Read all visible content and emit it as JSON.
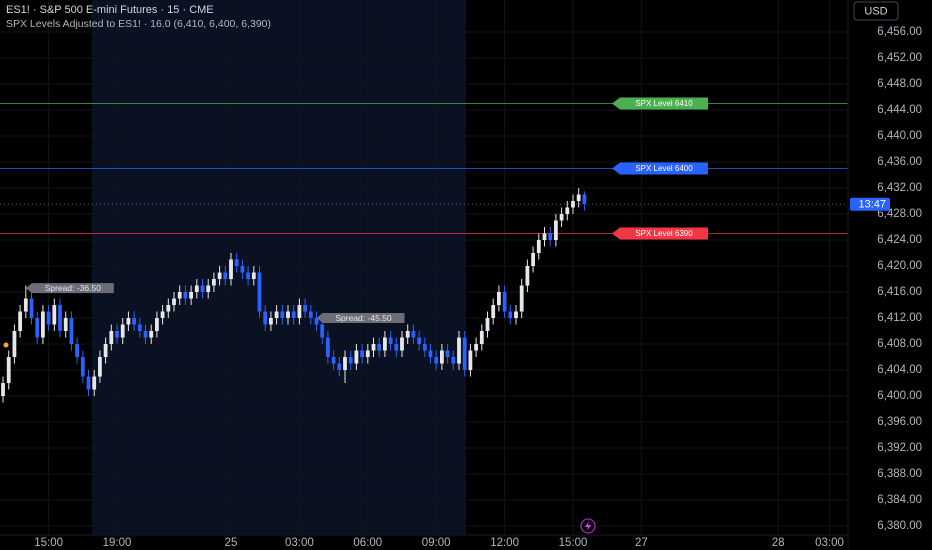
{
  "chart_data": {
    "type": "candlestick",
    "title": "ES1! · S&P 500 E-mini Futures · 15 · CME",
    "subtitle": "SPX Levels Adjusted to ES1! · 16.0 (6,410, 6,400, 6,390)",
    "currency": "USD",
    "up_color": "#e6e7eb",
    "down_color": "#2962ff",
    "grid": true,
    "xlim": [
      -0.53,
      148.25
    ],
    "xticks": [
      {
        "value": 8,
        "label": "15:00"
      },
      {
        "value": 20,
        "label": "19:00"
      },
      {
        "value": 40,
        "label": "25"
      },
      {
        "value": 52,
        "label": "03:00"
      },
      {
        "value": 64,
        "label": "06:00"
      },
      {
        "value": 76,
        "label": "09:00"
      },
      {
        "value": 88,
        "label": "12:00"
      },
      {
        "value": 100,
        "label": "15:00"
      },
      {
        "value": 112,
        "label": "27"
      },
      {
        "value": 136,
        "label": "28"
      },
      {
        "value": 145,
        "label": "03:00"
      }
    ],
    "ylim": [
      6378.62,
      6460.92
    ],
    "yticks": [
      {
        "value": 6380,
        "label": "6,380.00"
      },
      {
        "value": 6384,
        "label": "6,384.00"
      },
      {
        "value": 6388,
        "label": "6,388.00"
      },
      {
        "value": 6392,
        "label": "6,392.00"
      },
      {
        "value": 6396,
        "label": "6,396.00"
      },
      {
        "value": 6400,
        "label": "6,400.00"
      },
      {
        "value": 6404,
        "label": "6,404.00"
      },
      {
        "value": 6408,
        "label": "6,408.00"
      },
      {
        "value": 6412,
        "label": "6,412.00"
      },
      {
        "value": 6416,
        "label": "6,416.00"
      },
      {
        "value": 6420,
        "label": "6,420.00"
      },
      {
        "value": 6424,
        "label": "6,424.00"
      },
      {
        "value": 6428,
        "label": "6,428.00"
      },
      {
        "value": 6432,
        "label": "6,432.00"
      },
      {
        "value": 6436,
        "label": "6,436.00"
      },
      {
        "value": 6440,
        "label": "6,440.00"
      },
      {
        "value": 6444,
        "label": "6,444.00"
      },
      {
        "value": 6448,
        "label": "6,448.00"
      },
      {
        "value": 6452,
        "label": "6,452.00"
      },
      {
        "value": 6456,
        "label": "6,456.00"
      }
    ],
    "ohlc": [
      [
        6400,
        6403,
        6399,
        6402
      ],
      [
        6402,
        6407,
        6401,
        6406
      ],
      [
        6406,
        6411,
        6405,
        6410
      ],
      [
        6410,
        6414,
        6409,
        6413
      ],
      [
        6413,
        6417,
        6412,
        6415
      ],
      [
        6415,
        6416,
        6411,
        6412
      ],
      [
        6412,
        6413,
        6408,
        6409
      ],
      [
        6409,
        6414,
        6408,
        6413
      ],
      [
        6413,
        6414,
        6410,
        6411
      ],
      [
        6411,
        6415,
        6410,
        6414
      ],
      [
        6414,
        6415,
        6409,
        6410
      ],
      [
        6410,
        6413,
        6409,
        6412
      ],
      [
        6412,
        6413,
        6407,
        6408
      ],
      [
        6408,
        6409,
        6405,
        6406
      ],
      [
        6406,
        6407,
        6402,
        6403
      ],
      [
        6403,
        6404,
        6400,
        6401
      ],
      [
        6401,
        6404,
        6400,
        6403
      ],
      [
        6403,
        6407,
        6402,
        6406
      ],
      [
        6406,
        6409,
        6405,
        6408
      ],
      [
        6408,
        6411,
        6407,
        6410
      ],
      [
        6410,
        6411,
        6408,
        6409
      ],
      [
        6409,
        6412,
        6408,
        6411
      ],
      [
        6411,
        6413,
        6410,
        6412
      ],
      [
        6412,
        6413,
        6410,
        6411
      ],
      [
        6411,
        6412,
        6409,
        6410
      ],
      [
        6410,
        6411,
        6408,
        6409
      ],
      [
        6409,
        6411,
        6408,
        6410
      ],
      [
        6410,
        6413,
        6409,
        6412
      ],
      [
        6412,
        6414,
        6411,
        6413
      ],
      [
        6413,
        6415,
        6412,
        6414
      ],
      [
        6414,
        6416,
        6413,
        6415
      ],
      [
        6415,
        6417,
        6414,
        6416
      ],
      [
        6416,
        6417,
        6414,
        6415
      ],
      [
        6415,
        6417,
        6414,
        6416
      ],
      [
        6416,
        6418,
        6415,
        6417
      ],
      [
        6417,
        6418,
        6415,
        6416
      ],
      [
        6416,
        6418,
        6415,
        6417
      ],
      [
        6417,
        6419,
        6416,
        6418
      ],
      [
        6418,
        6420,
        6417,
        6419
      ],
      [
        6419,
        6420,
        6417,
        6418
      ],
      [
        6418,
        6422,
        6417,
        6421
      ],
      [
        6421,
        6422,
        6419,
        6420
      ],
      [
        6420,
        6421,
        6418,
        6419
      ],
      [
        6419,
        6420,
        6417,
        6418
      ],
      [
        6418,
        6420,
        6417,
        6419
      ],
      [
        6419,
        6420,
        6412,
        6413
      ],
      [
        6413,
        6414,
        6410,
        6411
      ],
      [
        6411,
        6413,
        6410,
        6412
      ],
      [
        6412,
        6414,
        6411,
        6413
      ],
      [
        6413,
        6414,
        6411,
        6412
      ],
      [
        6412,
        6414,
        6411,
        6413
      ],
      [
        6413,
        6414,
        6411,
        6412
      ],
      [
        6412,
        6415,
        6411,
        6414
      ],
      [
        6414,
        6415,
        6412,
        6413
      ],
      [
        6413,
        6414,
        6411,
        6412
      ],
      [
        6412,
        6413,
        6410,
        6411
      ],
      [
        6411,
        6412,
        6408,
        6409
      ],
      [
        6409,
        6410,
        6405,
        6406
      ],
      [
        6406,
        6407,
        6404,
        6405
      ],
      [
        6405,
        6406,
        6403,
        6404
      ],
      [
        6404,
        6407,
        6402,
        6406
      ],
      [
        6406,
        6407,
        6404,
        6405
      ],
      [
        6405,
        6408,
        6404,
        6407
      ],
      [
        6407,
        6408,
        6405,
        6406
      ],
      [
        6406,
        6408,
        6405,
        6407
      ],
      [
        6407,
        6409,
        6406,
        6408
      ],
      [
        6408,
        6409,
        6406,
        6407
      ],
      [
        6407,
        6410,
        6406,
        6409
      ],
      [
        6409,
        6410,
        6407,
        6408
      ],
      [
        6408,
        6409,
        6406,
        6407
      ],
      [
        6407,
        6410,
        6406,
        6409
      ],
      [
        6409,
        6411,
        6408,
        6410
      ],
      [
        6410,
        6411,
        6408,
        6409
      ],
      [
        6409,
        6410,
        6407,
        6408
      ],
      [
        6408,
        6409,
        6406,
        6407
      ],
      [
        6407,
        6408,
        6405,
        6406
      ],
      [
        6406,
        6407,
        6404,
        6405
      ],
      [
        6405,
        6408,
        6404,
        6407
      ],
      [
        6407,
        6408,
        6405,
        6406
      ],
      [
        6406,
        6407,
        6404,
        6405
      ],
      [
        6405,
        6410,
        6404,
        6409
      ],
      [
        6409,
        6410,
        6403,
        6404
      ],
      [
        6404,
        6408,
        6403,
        6407
      ],
      [
        6407,
        6409,
        6406,
        6408
      ],
      [
        6408,
        6411,
        6407,
        6410
      ],
      [
        6410,
        6413,
        6409,
        6412
      ],
      [
        6412,
        6415,
        6411,
        6414
      ],
      [
        6414,
        6417,
        6413,
        6416
      ],
      [
        6416,
        6417,
        6412,
        6413
      ],
      [
        6413,
        6414,
        6411,
        6412
      ],
      [
        6412,
        6414,
        6411,
        6413
      ],
      [
        6413,
        6418,
        6412,
        6417
      ],
      [
        6417,
        6421,
        6416,
        6420
      ],
      [
        6420,
        6423,
        6419,
        6422
      ],
      [
        6422,
        6425,
        6421,
        6424
      ],
      [
        6424,
        6426,
        6423,
        6425
      ],
      [
        6425,
        6426,
        6423,
        6424
      ],
      [
        6424,
        6428,
        6423,
        6427
      ],
      [
        6427,
        6429,
        6426,
        6428
      ],
      [
        6428,
        6430,
        6427,
        6429
      ],
      [
        6429,
        6431,
        6428,
        6430
      ],
      [
        6430,
        6432,
        6429,
        6431
      ],
      [
        6431,
        6431.5,
        6428.5,
        6429.5
      ]
    ],
    "levels": [
      {
        "label": "SPX Level 6410",
        "value": 6445,
        "color": "#4caf50"
      },
      {
        "label": "SPX Level 6400",
        "value": 6435,
        "color": "#2962ff"
      },
      {
        "label": "SPX Level 6390",
        "value": 6425,
        "color": "#f23645"
      }
    ],
    "annotations": [
      {
        "text": "Spread: -36.50",
        "x": 4,
        "y": 6416.6
      },
      {
        "text": "Spread: -45.50",
        "x": 55,
        "y": 6412
      }
    ],
    "last_price": 6429.5,
    "countdown": "13:47",
    "countdown_color": "#2962ff"
  }
}
